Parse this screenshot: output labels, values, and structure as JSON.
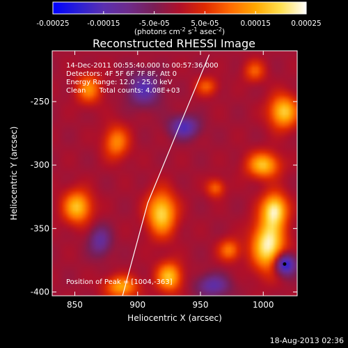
{
  "chart_data": {
    "type": "heatmap",
    "title": "Reconstructed RHESSI Image",
    "xlabel": "Heliocentric X (arcsec)",
    "ylabel": "Heliocentric Y (arcsec)",
    "xlim": [
      832,
      1027
    ],
    "ylim": [
      -403,
      -210
    ],
    "x_ticks": [
      850,
      900,
      950,
      1000
    ],
    "y_ticks": [
      -250,
      -300,
      -350,
      -400
    ],
    "colorbar": {
      "range": [
        -0.00025,
        0.00025
      ],
      "ticks": [
        "-0.00025",
        "-0.00015",
        "-5.0e-05",
        "5.0e-05",
        "0.00015",
        "0.00025"
      ],
      "units_label": "(photons cm",
      "units_sup1": "-2",
      "units_mid": " s",
      "units_sup2": "-1",
      "units_mid2": " asec",
      "units_sup3": "-2",
      "units_end": ")",
      "colormap": [
        "#0000ff",
        "#2a1fd6",
        "#5a2fb0",
        "#6e2b8a",
        "#7a1e55",
        "#b0102a",
        "#e02a00",
        "#ff6a00",
        "#ffa800",
        "#ffe050",
        "#ffffff"
      ]
    },
    "annotations": {
      "line1": "14-Dec-2011 00:55:40.000 to 00:57:36.000",
      "line2": "Detectors: 4F 5F 6F 7F 8F, Att 0",
      "line3": "Energy Range: 12.0 - 25.0 keV",
      "line4": "Clean      Total counts: 4.08E+03",
      "peak": "Position of Peak = [1004,-363]"
    },
    "peak_position": [
      1004,
      -363
    ],
    "sources": [
      {
        "x": 1004,
        "y": -363,
        "sx": 9,
        "sy": 14,
        "amp": 1.0
      },
      {
        "x": 1009,
        "y": -335,
        "sx": 7,
        "sy": 9,
        "amp": 0.9
      },
      {
        "x": 1000,
        "y": -300,
        "sx": 9,
        "sy": 7,
        "amp": 0.75
      },
      {
        "x": 1016,
        "y": -258,
        "sx": 8,
        "sy": 9,
        "amp": 0.8
      },
      {
        "x": 919,
        "y": -338,
        "sx": 8,
        "sy": 12,
        "amp": 0.85
      },
      {
        "x": 925,
        "y": -388,
        "sx": 7,
        "sy": 8,
        "amp": 0.75
      },
      {
        "x": 852,
        "y": -333,
        "sx": 8,
        "sy": 9,
        "amp": 0.75
      },
      {
        "x": 887,
        "y": -396,
        "sx": 9,
        "sy": 6,
        "amp": 0.65
      },
      {
        "x": 861,
        "y": -240,
        "sx": 7,
        "sy": 8,
        "amp": 0.55
      },
      {
        "x": 883,
        "y": -282,
        "sx": 7,
        "sy": 9,
        "amp": 0.55
      },
      {
        "x": 962,
        "y": -318,
        "sx": 5,
        "sy": 5,
        "amp": 0.45
      },
      {
        "x": 973,
        "y": -367,
        "sx": 6,
        "sy": 6,
        "amp": 0.5
      },
      {
        "x": 955,
        "y": -238,
        "sx": 6,
        "sy": 5,
        "amp": 0.4
      },
      {
        "x": 993,
        "y": -226,
        "sx": 6,
        "sy": 6,
        "amp": 0.4
      },
      {
        "x": 937,
        "y": -270,
        "sx": 8,
        "sy": 6,
        "amp": -0.6
      },
      {
        "x": 1017,
        "y": -378,
        "sx": 6,
        "sy": 6,
        "amp": -0.9
      },
      {
        "x": 905,
        "y": -240,
        "sx": 9,
        "sy": 9,
        "amp": -0.55
      },
      {
        "x": 960,
        "y": -395,
        "sx": 9,
        "sy": 6,
        "amp": -0.5
      },
      {
        "x": 870,
        "y": -360,
        "sx": 6,
        "sy": 8,
        "amp": -0.45
      }
    ],
    "limb_line": [
      [
        888,
        -403
      ],
      [
        908,
        -330
      ],
      [
        933,
        -270
      ],
      [
        957,
        -213
      ]
    ],
    "timestamp": "18-Aug-2013 02:36"
  }
}
